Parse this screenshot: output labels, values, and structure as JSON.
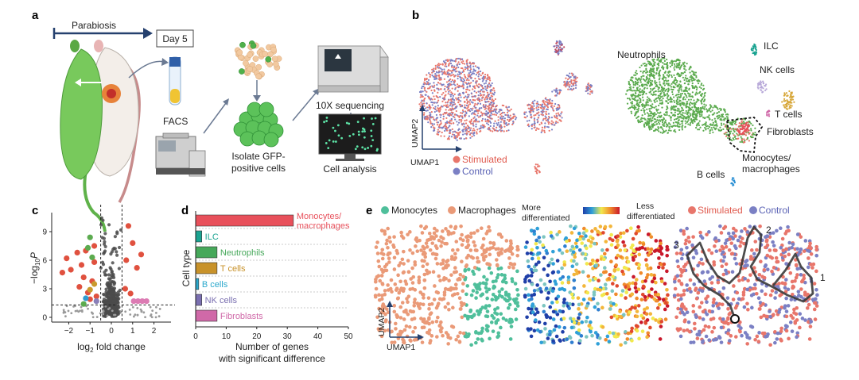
{
  "panels": {
    "a": {
      "label": "a",
      "parabiosis": "Parabiosis",
      "day": "Day 5",
      "facs": "FACS",
      "isolate_line1": "Isolate GFP-",
      "isolate_line2": "positive cells",
      "seq": "10X sequencing",
      "analysis": "Cell analysis"
    },
    "b": {
      "label": "b",
      "axis_y": "UMAP2",
      "axis_x": "UMAP1",
      "legend_stimulated": "Stimulated",
      "legend_control": "Control",
      "clusters": {
        "neutrophils": "Neutrophils",
        "ilc": "ILC",
        "nk": "NK cells",
        "t": "T cells",
        "fibroblasts": "Fibroblasts",
        "mono_line1": "Monocytes/",
        "mono_line2": "macrophages",
        "b": "B cells"
      }
    },
    "c": {
      "label": "c"
    },
    "d": {
      "label": "d"
    },
    "e": {
      "label": "e",
      "legend_monocytes": "Monocytes",
      "legend_macrophages": "Macrophages",
      "more_line1": "More",
      "more_line2": "differentiated",
      "less_line1": "Less",
      "less_line2": "differentiated",
      "legend_stimulated": "Stimulated",
      "legend_control": "Control",
      "axis_y": "UMAP2",
      "axis_x": "UMAP1",
      "traj": [
        "1",
        "2",
        "3"
      ]
    }
  },
  "colors": {
    "stimulated": "#e8766b",
    "control": "#7b80c4",
    "neutrophil_green": "#5cab4f",
    "monocyte_teal": "#4fbf9b",
    "macrophage_orange": "#ea9a78",
    "sig_red": "#e0513f",
    "nonsig_grey": "#4b4b4b"
  },
  "chart_data": [
    {
      "type": "scatter",
      "panel": "c",
      "xlabel_base": "log",
      "xlabel_sub": "2",
      "xlabel_rest": " fold change",
      "ylabel_pre": "−log",
      "ylabel_sub": "10",
      "ylabel_var": "P",
      "xlim": [
        -2.8,
        2.8
      ],
      "ylim": [
        -0.5,
        11
      ],
      "xticks": [
        "−2",
        "−1",
        "0",
        "1",
        "2"
      ],
      "xtick_values": [
        -2,
        -1,
        0,
        1,
        2
      ],
      "yticks": [
        "0",
        "3",
        "6",
        "9"
      ],
      "ytick_values": [
        0,
        3,
        6,
        9
      ],
      "fc_thresholds": [
        -0.5,
        0.5
      ],
      "p_threshold": 1.3,
      "significant_points": [
        {
          "x": -2.1,
          "y": 6.2,
          "c": "#e0513f"
        },
        {
          "x": -1.9,
          "y": 5.0,
          "c": "#e0513f"
        },
        {
          "x": -2.3,
          "y": 4.7,
          "c": "#e0513f"
        },
        {
          "x": -1.6,
          "y": 6.8,
          "c": "#e0513f"
        },
        {
          "x": -1.4,
          "y": 5.5,
          "c": "#e0513f"
        },
        {
          "x": -1.2,
          "y": 7.0,
          "c": "#e0513f"
        },
        {
          "x": -1.5,
          "y": 3.2,
          "c": "#e0513f"
        },
        {
          "x": -1.1,
          "y": 2.6,
          "c": "#e0513f"
        },
        {
          "x": -0.9,
          "y": 3.8,
          "c": "#e0513f"
        },
        {
          "x": -0.8,
          "y": 7.5,
          "c": "#e0513f"
        },
        {
          "x": -1.0,
          "y": 1.9,
          "c": "#e0513f"
        },
        {
          "x": -0.7,
          "y": 2.2,
          "c": "#e0513f"
        },
        {
          "x": -1.3,
          "y": 4.2,
          "c": "#e0513f"
        },
        {
          "x": -0.8,
          "y": 5.8,
          "c": "#e0513f"
        },
        {
          "x": -1.0,
          "y": 8.4,
          "c": "#5cab4f"
        },
        {
          "x": -1.1,
          "y": 7.3,
          "c": "#5cab4f"
        },
        {
          "x": -1.3,
          "y": 1.4,
          "c": "#5cab4f"
        },
        {
          "x": -0.9,
          "y": 6.3,
          "c": "#5cab4f"
        },
        {
          "x": -1.0,
          "y": 2.9,
          "c": "#c99a2e"
        },
        {
          "x": -0.8,
          "y": 3.5,
          "c": "#c99a2e"
        },
        {
          "x": -1.2,
          "y": 2.0,
          "c": "#2f9bd1"
        },
        {
          "x": -0.7,
          "y": 1.7,
          "c": "#8a7fb8"
        },
        {
          "x": 0.8,
          "y": 9.6,
          "c": "#e0513f"
        },
        {
          "x": 1.0,
          "y": 7.8,
          "c": "#e0513f"
        },
        {
          "x": 0.7,
          "y": 6.0,
          "c": "#e0513f"
        },
        {
          "x": 1.4,
          "y": 6.6,
          "c": "#e0513f"
        },
        {
          "x": 0.9,
          "y": 2.5,
          "c": "#e0513f"
        },
        {
          "x": 1.2,
          "y": 5.2,
          "c": "#e0513f"
        },
        {
          "x": 0.65,
          "y": 3.0,
          "c": "#e0513f"
        },
        {
          "x": 1.05,
          "y": 1.7,
          "c": "#dc7bb3"
        },
        {
          "x": 1.25,
          "y": 1.7,
          "c": "#dc7bb3"
        },
        {
          "x": 1.45,
          "y": 1.7,
          "c": "#dc7bb3"
        },
        {
          "x": 1.65,
          "y": 1.7,
          "c": "#dc7bb3"
        }
      ]
    },
    {
      "type": "bar",
      "panel": "d",
      "orientation": "horizontal",
      "categories": [
        "Monocytes/ macrophages",
        "ILC",
        "Neutrophils",
        "T cells",
        "B cells",
        "NK cells",
        "Fibroblasts"
      ],
      "category_lines": [
        [
          "Monocytes/",
          "macrophages"
        ],
        [
          "ILC"
        ],
        [
          "Neutrophils"
        ],
        [
          "T cells"
        ],
        [
          "B cells"
        ],
        [
          "NK cells"
        ],
        [
          "Fibroblasts"
        ]
      ],
      "values": [
        32,
        2,
        7,
        7,
        1,
        2,
        7
      ],
      "colors": [
        "#e8505b",
        "#1aa391",
        "#46a85a",
        "#c8922a",
        "#2aa8cc",
        "#7a6fb0",
        "#d069a8"
      ],
      "xlabel_line1": "Number of genes",
      "xlabel_line2": "with significant difference",
      "ylabel": "Cell type",
      "xlim": [
        0,
        50
      ],
      "xticks": [
        "0",
        "10",
        "20",
        "30",
        "40",
        "50"
      ],
      "xtick_values": [
        0,
        10,
        20,
        30,
        40,
        50
      ]
    }
  ]
}
